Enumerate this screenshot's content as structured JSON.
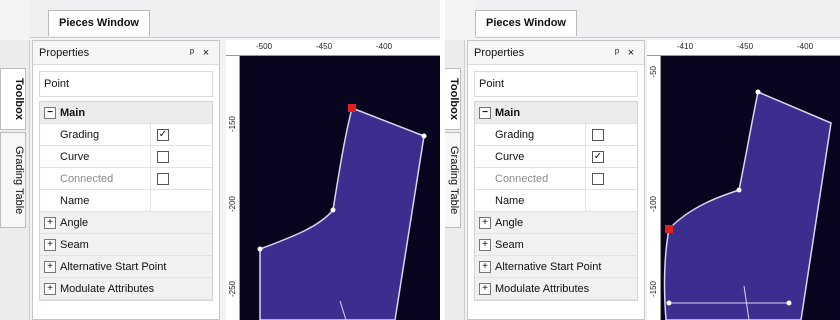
{
  "left": {
    "tab_label": "Pieces Window",
    "sidebar": {
      "toolbox": "Toolbox",
      "grading_table": "Grading Table"
    },
    "properties": {
      "title": "Properties",
      "pin": "ᵖ",
      "close": "×",
      "object_type": "Point",
      "main_label": "Main",
      "rows": [
        {
          "name": "Grading",
          "checked": "✓"
        },
        {
          "name": "Curve",
          "checked": ""
        },
        {
          "name": "Connected",
          "checked": ""
        },
        {
          "name": "Name"
        }
      ],
      "categories": [
        "Angle",
        "Seam",
        "Alternative Start Point",
        "Modulate Attributes"
      ]
    },
    "ruler": {
      "top": [
        "-500",
        "-450",
        "-400"
      ],
      "left": [
        "-150",
        "-200",
        "-250"
      ]
    }
  },
  "right": {
    "tab_label": "Pieces Window",
    "sidebar": {
      "toolbox": "Toolbox",
      "grading_table": "Grading Table"
    },
    "properties": {
      "title": "Properties",
      "pin": "ᵖ",
      "close": "×",
      "object_type": "Point",
      "main_label": "Main",
      "rows": [
        {
          "name": "Grading",
          "checked": ""
        },
        {
          "name": "Curve",
          "checked": "✓"
        },
        {
          "name": "Connected",
          "checked": ""
        },
        {
          "name": "Name"
        }
      ],
      "categories": [
        "Angle",
        "Seam",
        "Alternative Start Point",
        "Modulate Attributes"
      ]
    },
    "ruler": {
      "top": [
        "-410",
        "-450",
        "-400"
      ],
      "left": [
        "-50",
        "-100",
        "-150"
      ]
    }
  },
  "colors": {
    "canvas": "#08061e",
    "piece_fill": "#3b2e8e",
    "piece_stroke": "#d8d6f0",
    "selected_point": "#e02020",
    "point": "#ffffff"
  }
}
